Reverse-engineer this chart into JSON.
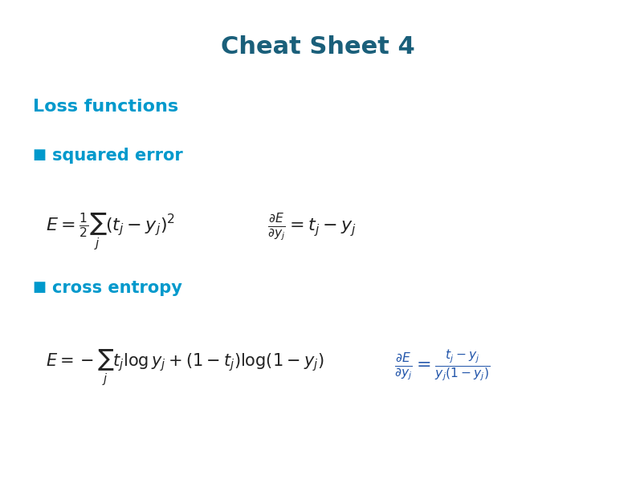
{
  "title": "Cheat Sheet 4",
  "title_color": "#1a5f7a",
  "title_fontsize": 22,
  "title_fontweight": "bold",
  "bg_color": "#ffffff",
  "teal_color": "#0099cc",
  "dark_teal": "#006080",
  "section_color": "#0088bb",
  "bullet_color": "#0088bb",
  "formula_color": "#333333",
  "blue_formula_color": "#2255aa",
  "loss_functions_text": "Loss functions",
  "squared_error_text": "squared error",
  "cross_entropy_text": "cross entropy",
  "eq1_left": "E=\\frac{1}{2}\\sum_j \\left(t_j - y_j\\right)^2",
  "eq1_right": "\\frac{\\partial E}{\\partial y_j}=t_j - y_j",
  "eq2_left": "E=-\\sum_j\\, t_j \\log y_j + (1-t_j)\\log(1-y_j)",
  "eq2_right_num": "t_j - y_j",
  "eq2_right_den": "y_j(1-y_j)",
  "eq2_right_prefix": "\\frac{\\partial E}{\\partial y_j}=\\frac{",
  "figwidth": 7.92,
  "figheight": 6.12
}
